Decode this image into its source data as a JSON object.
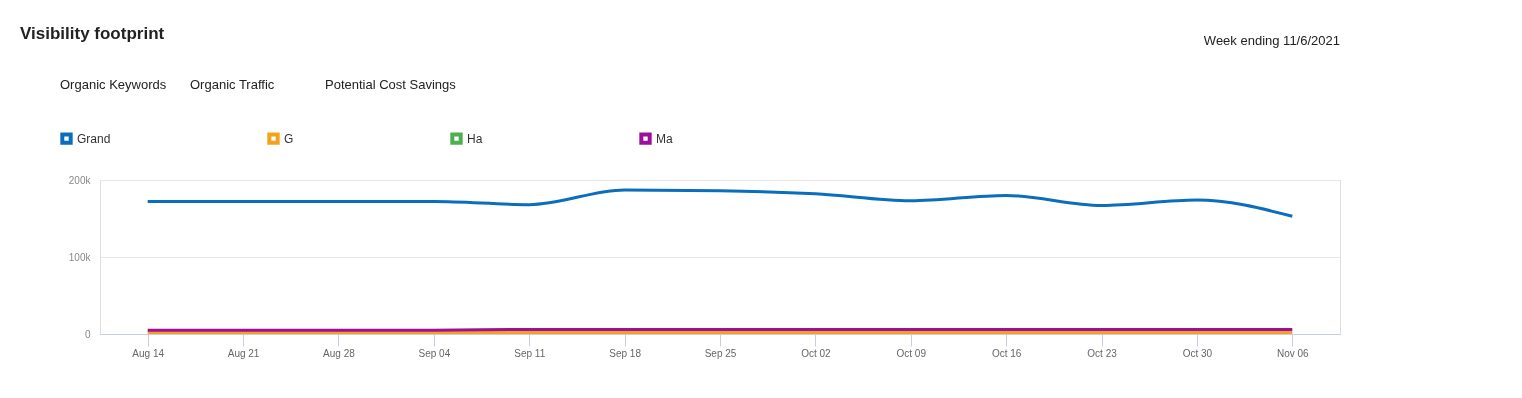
{
  "chart_data": {
    "type": "line",
    "title": "Visibility footprint",
    "annotations": [
      "Organic Keywords",
      "Organic Traffic",
      "Potential Cost Savings",
      "Week ending 11/6/2021"
    ],
    "categories": [
      "Aug 14",
      "Aug 21",
      "Aug 28",
      "Sep 04",
      "Sep 11",
      "Sep 18",
      "Sep 25",
      "Oct 02",
      "Oct 09",
      "Oct 16",
      "Oct 23",
      "Oct 30",
      "Nov 06"
    ],
    "series": [
      {
        "name": "Grand",
        "color": "#0a6ebd",
        "values": [
          172000,
          172000,
          172000,
          172000,
          168000,
          187000,
          186000,
          182000,
          173000,
          180000,
          167000,
          174000,
          153000
        ]
      },
      {
        "name": "G",
        "color": "#f5a21a",
        "values": [
          2000,
          2000,
          2000,
          2000,
          2000,
          2000,
          2000,
          2000,
          2000,
          2000,
          2000,
          2000,
          2000
        ]
      },
      {
        "name": "Ha",
        "color": "#4caf50",
        "values": [
          null,
          null,
          null,
          null,
          null,
          null,
          null,
          null,
          null,
          null,
          null,
          null,
          null
        ]
      },
      {
        "name": "Ma",
        "color": "#9c0f9c",
        "values": [
          5000,
          5000,
          5000,
          5000,
          6000,
          6000,
          6000,
          6000,
          6000,
          6000,
          6000,
          6000,
          6000
        ]
      }
    ],
    "ylim": [
      0,
      200000
    ],
    "yticks": [
      {
        "value": 0,
        "label": "0"
      },
      {
        "value": 100000,
        "label": "100k"
      },
      {
        "value": 200000,
        "label": "200k"
      }
    ],
    "grid": "y",
    "legend": "top left",
    "marker": "none",
    "line_style": "solid"
  }
}
